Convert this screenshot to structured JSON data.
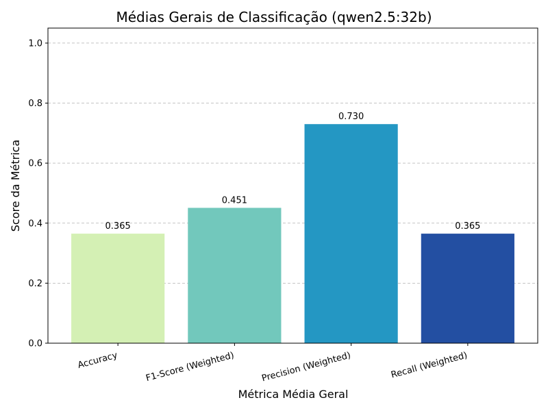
{
  "chart_data": {
    "type": "bar",
    "title": "Médias Gerais de Classificação (qwen2.5:32b)",
    "xlabel": "Métrica Média Geral",
    "ylabel": "Score da Métrica",
    "categories": [
      "Accuracy",
      "F1-Score (Weighted)",
      "Precision (Weighted)",
      "Recall (Weighted)"
    ],
    "values": [
      0.365,
      0.451,
      0.73,
      0.365
    ],
    "value_labels": [
      "0.365",
      "0.451",
      "0.730",
      "0.365"
    ],
    "colors": [
      "#d4f0b4",
      "#72c8bc",
      "#2497c3",
      "#234fa2"
    ],
    "ylim": [
      0,
      1.05
    ],
    "yticks": [
      0.0,
      0.2,
      0.4,
      0.6,
      0.8,
      1.0
    ],
    "ytick_labels": [
      "0.0",
      "0.2",
      "0.4",
      "0.6",
      "0.8",
      "1.0"
    ],
    "grid": "y-dashed",
    "legend": "none"
  }
}
